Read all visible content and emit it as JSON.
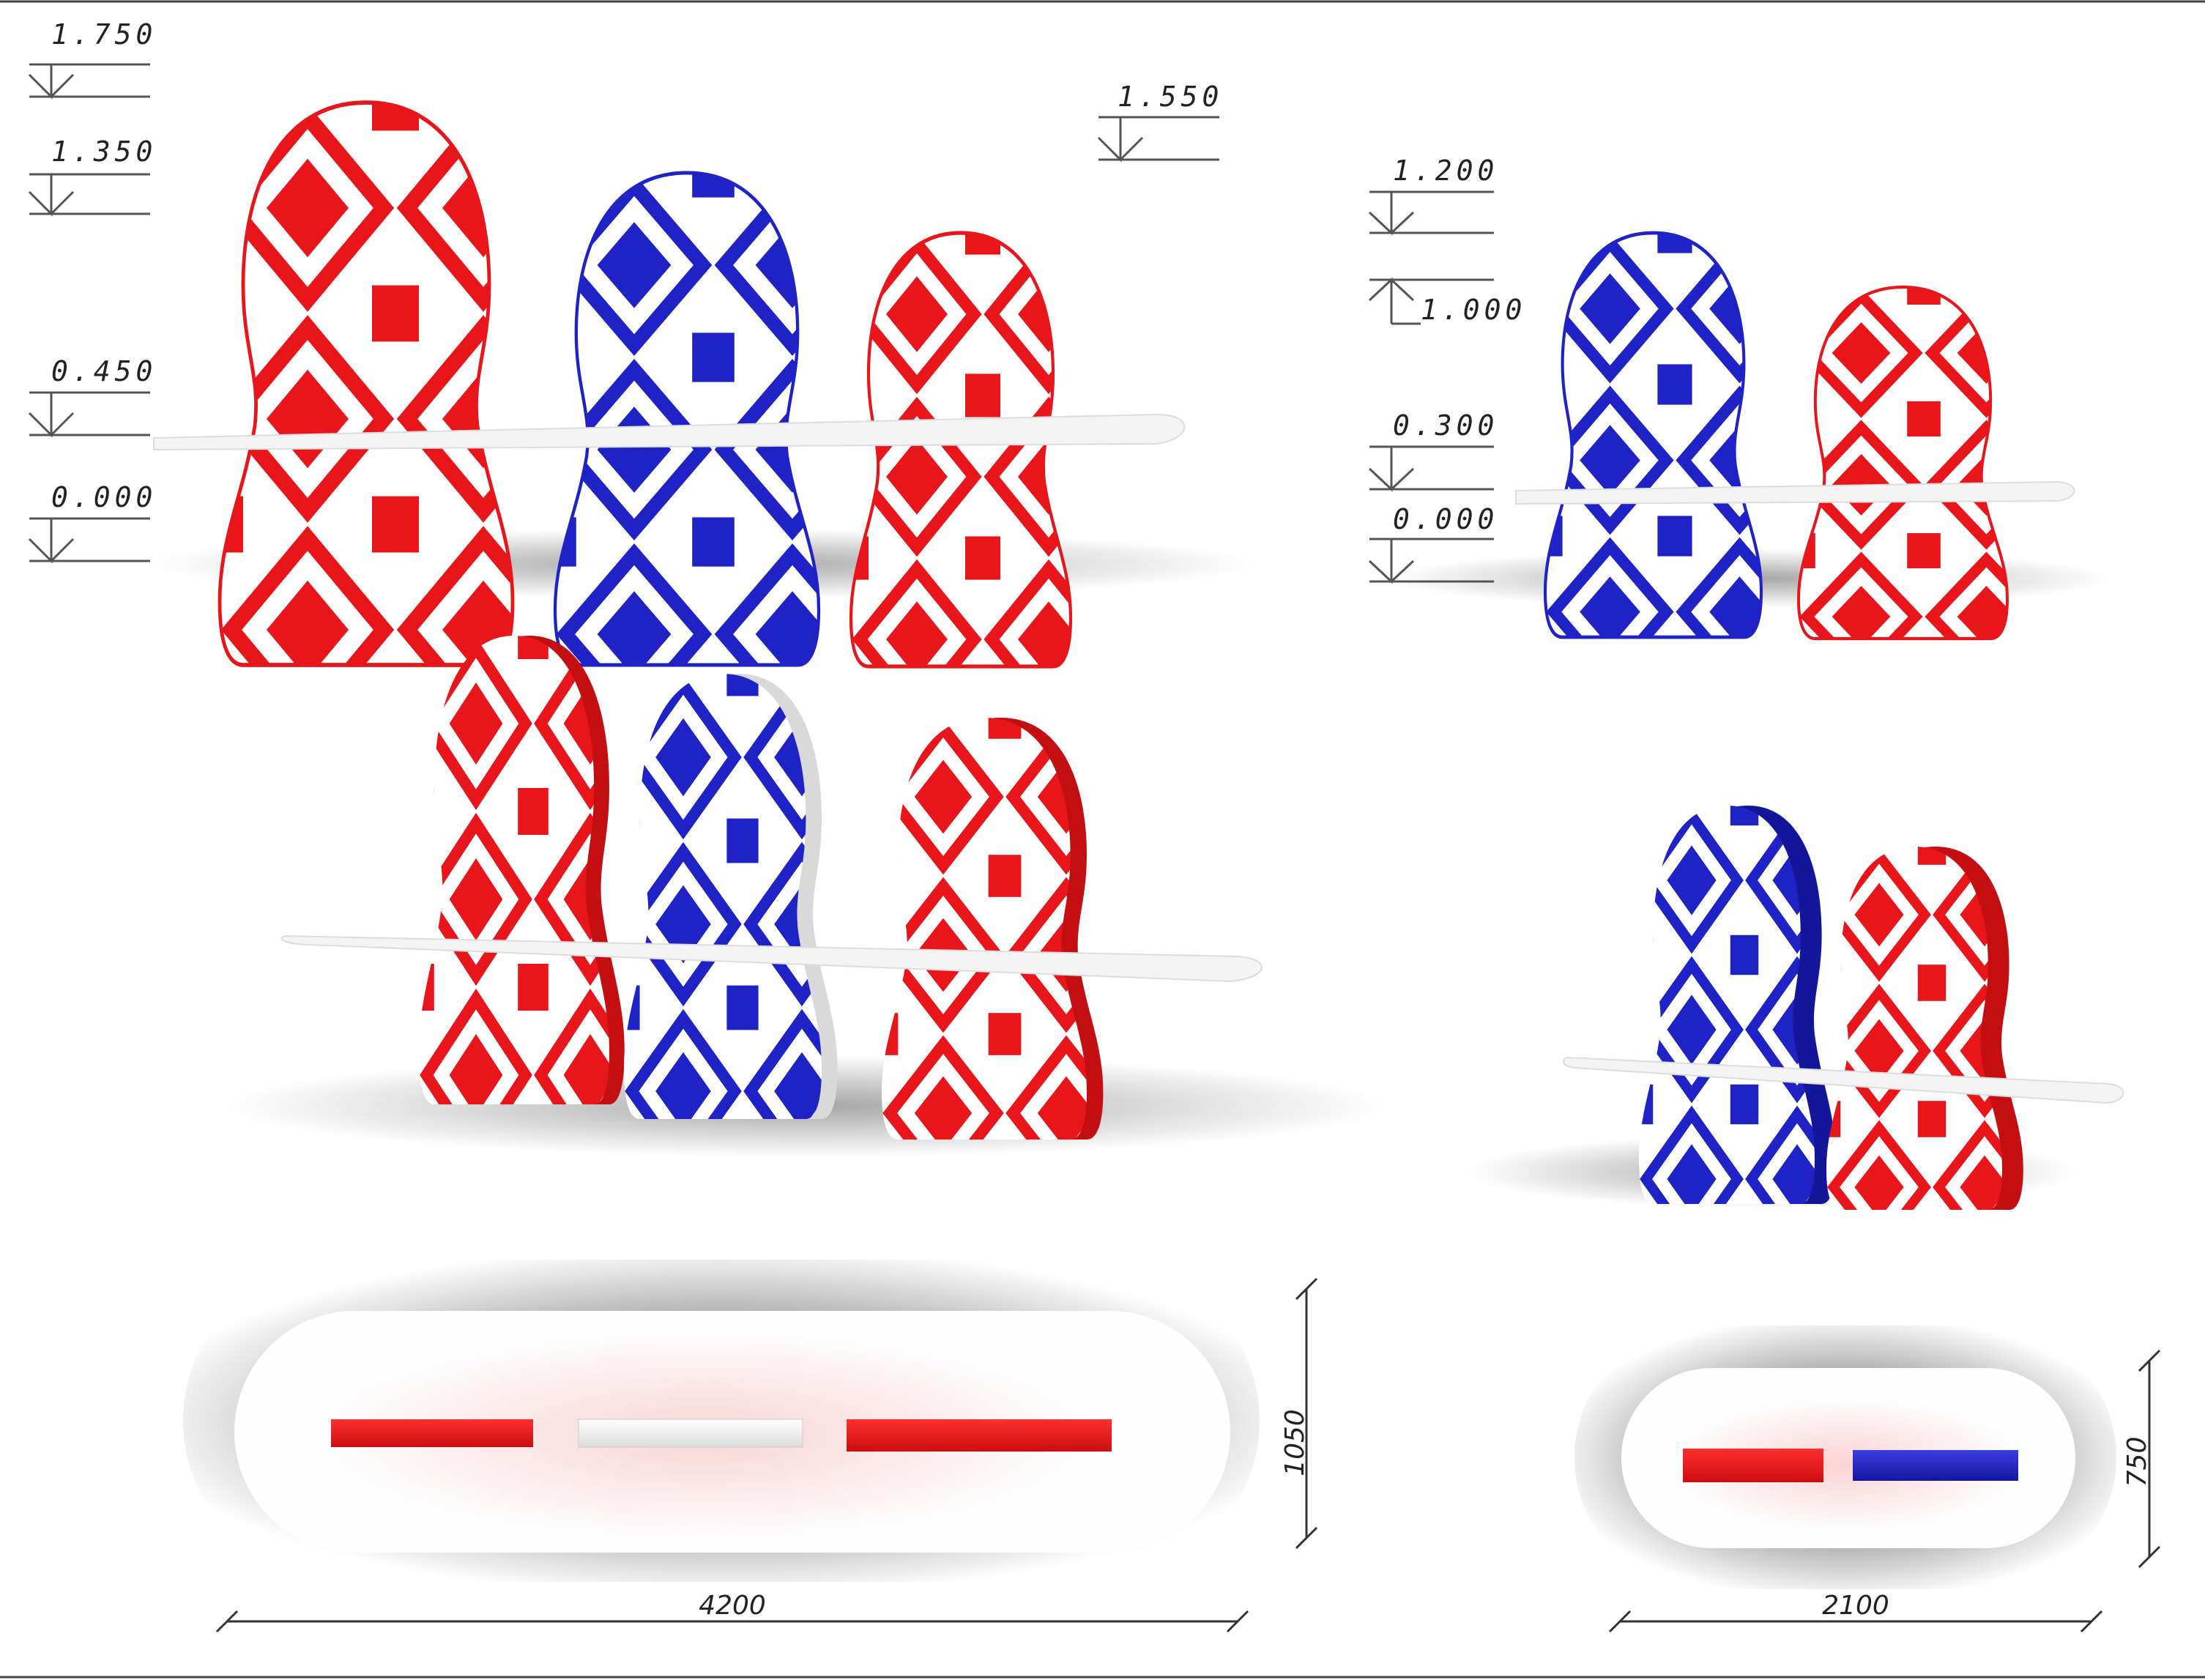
{
  "colors": {
    "red": "#e8161b",
    "red_side": "#c40f12",
    "blue": "#1f22c4",
    "blue_side": "#14169a",
    "shelf": "#f4f4f4",
    "line": "#444444"
  },
  "elevation_front_large": {
    "levels_left": [
      "1.750",
      "1.350",
      "0.450",
      "0.000"
    ],
    "levels_right": [
      "1.550"
    ],
    "dolls": [
      "red",
      "blue",
      "red"
    ]
  },
  "elevation_front_small": {
    "levels": [
      "1.200",
      "1.000",
      "0.300",
      "0.000"
    ],
    "dolls": [
      "blue",
      "red"
    ]
  },
  "perspective_large": {
    "dolls": [
      "red",
      "blue",
      "red"
    ]
  },
  "perspective_small": {
    "dolls": [
      "blue",
      "red"
    ]
  },
  "plan_large": {
    "length": "4200",
    "width": "1050"
  },
  "plan_small": {
    "length": "2100",
    "width": "750"
  }
}
